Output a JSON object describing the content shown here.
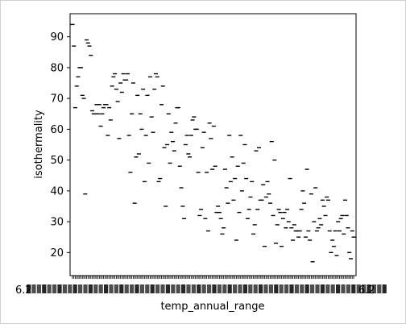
{
  "chart_data": {
    "type": "scatter",
    "xlabel": "temp_annual_range",
    "ylabel": "isothermality",
    "x_tick_label_visible": "6.2",
    "ylim": [
      12.5,
      97.5
    ],
    "y_ticks": [
      20,
      30,
      40,
      50,
      60,
      70,
      80,
      90
    ],
    "grid": false,
    "marker": "short horizontal dash",
    "marker_color": "#000000",
    "points_in_x_order": [
      94,
      87,
      67,
      74,
      77,
      80,
      80,
      71,
      70,
      39,
      89,
      88,
      87,
      84,
      66,
      65,
      65,
      68,
      65,
      68,
      61,
      65,
      67,
      68,
      68,
      58,
      67,
      63,
      74,
      77,
      78,
      73,
      69,
      57,
      75,
      72,
      78,
      76,
      76,
      78,
      58,
      46,
      65,
      75,
      36,
      51,
      71,
      52,
      65,
      60,
      73,
      43,
      58,
      71,
      49,
      77,
      64,
      59,
      73,
      78,
      77,
      43,
      44,
      68,
      74,
      54,
      35,
      55,
      65,
      49,
      59,
      56,
      53,
      62,
      67,
      67,
      48,
      41,
      35,
      31,
      55,
      58,
      52,
      51,
      58,
      63,
      64,
      60,
      60,
      46,
      32,
      34,
      54,
      59,
      31,
      46,
      27,
      62,
      57,
      47,
      61,
      48,
      33,
      35,
      33,
      31,
      26,
      28,
      47,
      41,
      36,
      58,
      43,
      51,
      37,
      44,
      24,
      48,
      33,
      58,
      40,
      49,
      55,
      44,
      31,
      34,
      38,
      43,
      26,
      29,
      53,
      34,
      54,
      37,
      37,
      42,
      22,
      38,
      43,
      39,
      36,
      56,
      32,
      50,
      23,
      29,
      34,
      33,
      22,
      31,
      33,
      28,
      34,
      30,
      44,
      28,
      24,
      29,
      27,
      27,
      25,
      27,
      34,
      40,
      36,
      25,
      47,
      27,
      24,
      39,
      17,
      30,
      41,
      27,
      28,
      31,
      29,
      37,
      35,
      32,
      38,
      37,
      27,
      20,
      24,
      22,
      27,
      19,
      30,
      27,
      31,
      32,
      26,
      37,
      32,
      28,
      20,
      18,
      27,
      25
    ]
  }
}
